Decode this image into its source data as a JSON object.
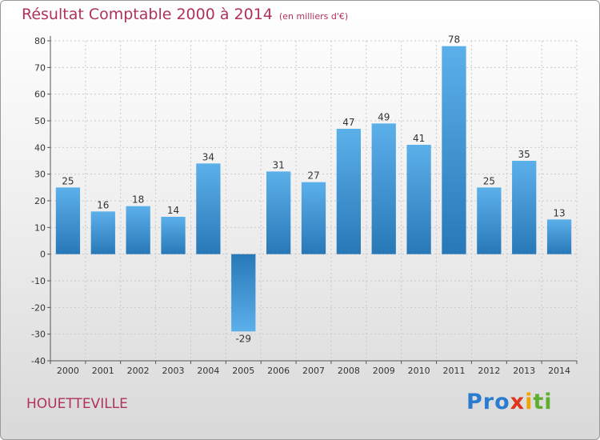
{
  "chart_data": {
    "type": "bar",
    "title": "Résultat Comptable 2000 à 2014",
    "unit_note": "(en milliers d'€)",
    "categories": [
      "2000",
      "2001",
      "2002",
      "2003",
      "2004",
      "2005",
      "2006",
      "2007",
      "2008",
      "2009",
      "2010",
      "2011",
      "2012",
      "2013",
      "2014"
    ],
    "values": [
      25,
      16,
      18,
      14,
      34,
      -29,
      31,
      27,
      47,
      49,
      41,
      78,
      25,
      35,
      13
    ],
    "ylim": [
      -40,
      80
    ],
    "yticks": [
      -40,
      -30,
      -20,
      -10,
      0,
      10,
      20,
      30,
      40,
      50,
      60,
      70,
      80
    ],
    "xlabel": "",
    "ylabel": "",
    "grid": true,
    "bar_color": "#2f86cc"
  },
  "commune": "HOUETTEVILLE",
  "logo": {
    "p1": "Pro",
    "p2": "x",
    "p3": "i",
    "p4": "ti"
  }
}
